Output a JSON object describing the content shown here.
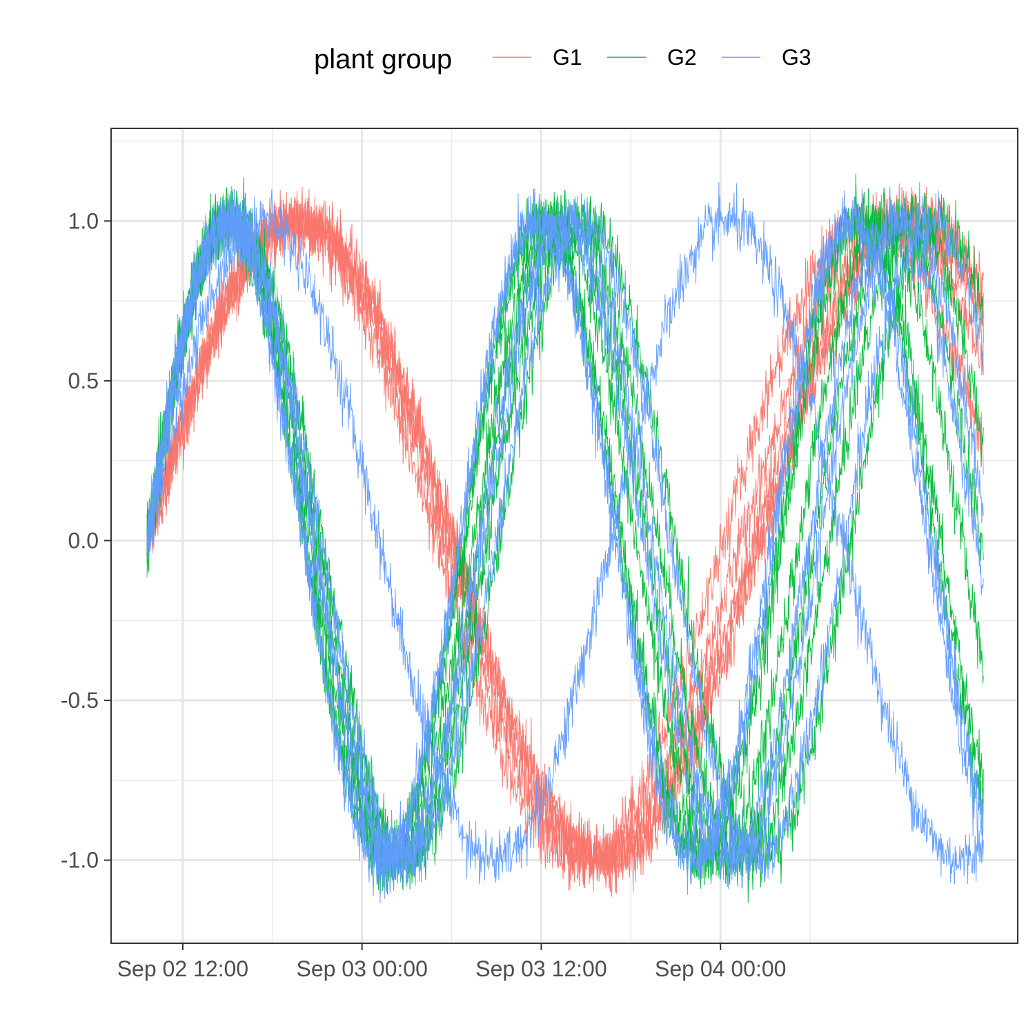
{
  "chart_data": {
    "type": "line",
    "title": "",
    "xlabel": "",
    "ylabel": "",
    "x_axis": {
      "kind": "datetime",
      "range": [
        "2022-09-02 07:12",
        "2022-09-04 19:54"
      ],
      "ticks": [
        {
          "value": "2022-09-02 12:00",
          "label": "Sep 02 12:00"
        },
        {
          "value": "2022-09-03 00:00",
          "label": "Sep 03 00:00"
        },
        {
          "value": "2022-09-03 12:00",
          "label": "Sep 03 12:00"
        },
        {
          "value": "2022-09-04 00:00",
          "label": "Sep 04 00:00"
        }
      ]
    },
    "y_axis": {
      "range": [
        -1.26,
        1.29
      ],
      "ticks": [
        {
          "value": -1.0,
          "label": "-1.0"
        },
        {
          "value": -0.5,
          "label": "-0.5"
        },
        {
          "value": 0.0,
          "label": "0.0"
        },
        {
          "value": 0.5,
          "label": "0.5"
        },
        {
          "value": 1.0,
          "label": "1.0"
        }
      ]
    },
    "grid": true,
    "legend": {
      "title": "plant group",
      "position": "top",
      "entries": [
        {
          "label": "G1",
          "color": "#F8766D"
        },
        {
          "label": "G2",
          "color": "#00BA38"
        },
        {
          "label": "G3",
          "color": "#619CFF"
        }
      ]
    },
    "x_start": "2022-09-02 09:36",
    "x_end": "2022-09-04 17:36",
    "series": [
      {
        "group": "G1",
        "color": "#F8766D",
        "period_hours": 36,
        "end_value": 0.78
      },
      {
        "group": "G1",
        "color": "#F8766D",
        "period_hours": 36,
        "end_value": 0.74
      },
      {
        "group": "G1",
        "color": "#F8766D",
        "period_hours": 36,
        "end_value": 0.7
      },
      {
        "group": "G1",
        "color": "#F8766D",
        "period_hours": 37,
        "end_value": 0.55
      },
      {
        "group": "G1",
        "color": "#F8766D",
        "period_hours": 38,
        "end_value": 0.3
      },
      {
        "group": "G2",
        "color": "#00BA38",
        "period_hours": 24.5,
        "end_value": -0.75
      },
      {
        "group": "G2",
        "color": "#00BA38",
        "period_hours": 24.2,
        "end_value": -0.82
      },
      {
        "group": "G2",
        "color": "#00BA38",
        "period_hours": 23.8,
        "end_value": -0.4
      },
      {
        "group": "G2",
        "color": "#00BA38",
        "period_hours": 23.4,
        "end_value": -0.05
      },
      {
        "group": "G2",
        "color": "#00BA38",
        "period_hours": 22.9,
        "end_value": 0.3
      },
      {
        "group": "G2",
        "color": "#00BA38",
        "period_hours": 22.3,
        "end_value": 0.7
      },
      {
        "group": "G3",
        "color": "#619CFF",
        "period_hours": 25.0,
        "end_value": -0.95
      },
      {
        "group": "G3",
        "color": "#619CFF",
        "period_hours": 24.6,
        "end_value": -0.9
      },
      {
        "group": "G3",
        "color": "#619CFF",
        "period_hours": 24.0,
        "end_value": -0.85
      },
      {
        "group": "G3",
        "color": "#619CFF",
        "period_hours": 23.5,
        "end_value": -0.15
      },
      {
        "group": "G3",
        "color": "#619CFF",
        "period_hours": 22.8,
        "end_value": 0.1
      },
      {
        "group": "G3",
        "color": "#619CFF",
        "period_hours": 22.2,
        "end_value": 0.6
      }
    ]
  }
}
